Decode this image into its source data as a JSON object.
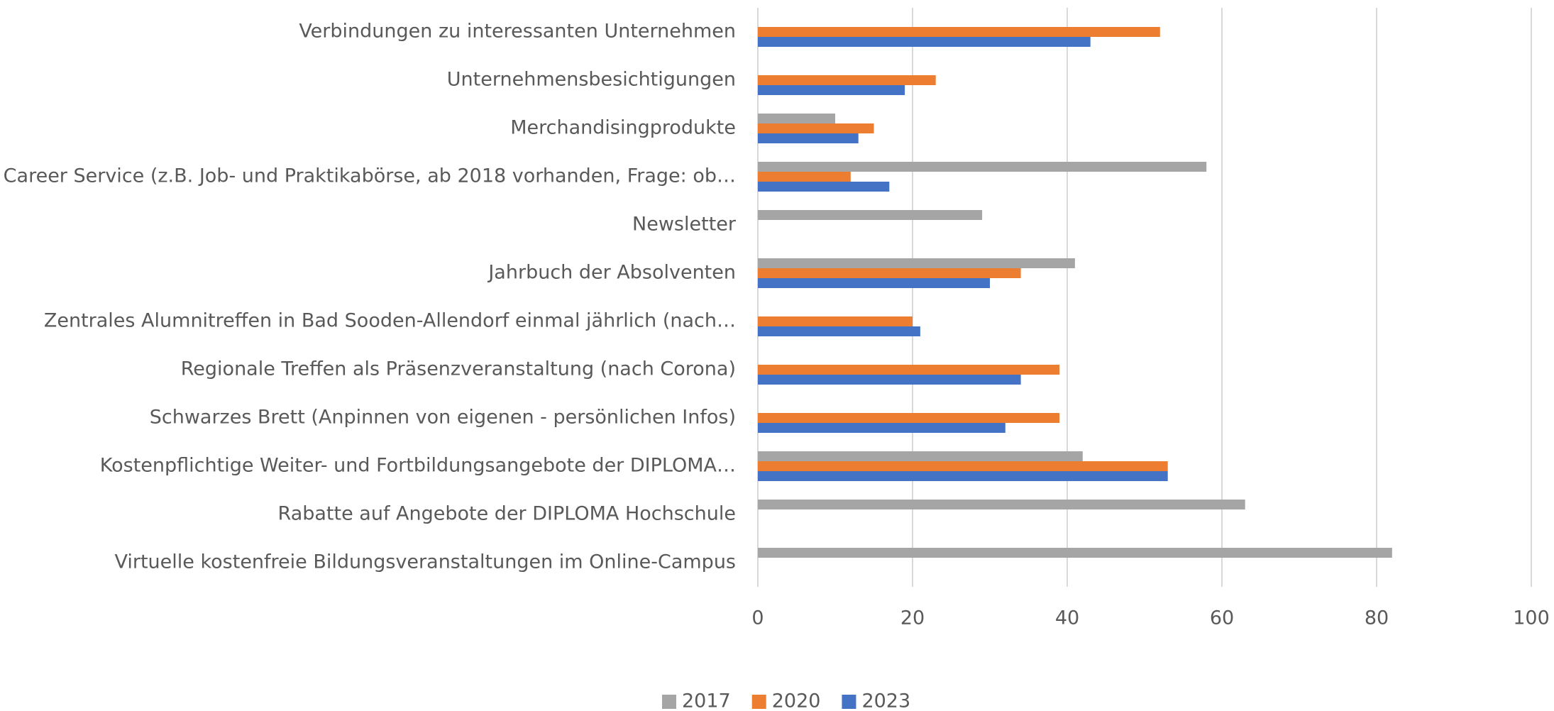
{
  "chart_data": {
    "type": "hbar",
    "categories": [
      "Verbindungen zu interessanten Unternehmen",
      "Unternehmensbesichtigungen",
      "Merchandisingprodukte",
      "Career Service (z.B. Job- und Praktikabörse, ab 2018 vorhanden, Frage: ob…",
      "Newsletter",
      "Jahrbuch der Absolventen",
      "Zentrales Alumnitreffen in Bad Sooden-Allendorf einmal jährlich (nach…",
      "Regionale Treffen als Präsenzveranstaltung (nach Corona)",
      "Schwarzes Brett (Anpinnen von eigenen - persönlichen Infos)",
      "Kostenpflichtige Weiter- und Fortbildungsangebote der DIPLOMA…",
      "Rabatte auf Angebote der DIPLOMA Hochschule",
      "Virtuelle kostenfreie Bildungsveranstaltungen im Online-Campus"
    ],
    "series": [
      {
        "name": "2017",
        "color": "#a5a5a5",
        "values": [
          null,
          null,
          10,
          58,
          29,
          41,
          null,
          null,
          null,
          42,
          63,
          82
        ]
      },
      {
        "name": "2020",
        "color": "#ed7d31",
        "values": [
          52,
          23,
          15,
          12,
          null,
          34,
          20,
          39,
          39,
          53,
          null,
          null
        ]
      },
      {
        "name": "2023",
        "color": "#4472c4",
        "values": [
          43,
          19,
          13,
          17,
          null,
          30,
          21,
          34,
          32,
          53,
          null,
          null
        ]
      }
    ],
    "xlim": [
      0,
      100
    ],
    "xticks": [
      0,
      20,
      40,
      60,
      80,
      100
    ],
    "grid": true,
    "legend": "bottom"
  }
}
